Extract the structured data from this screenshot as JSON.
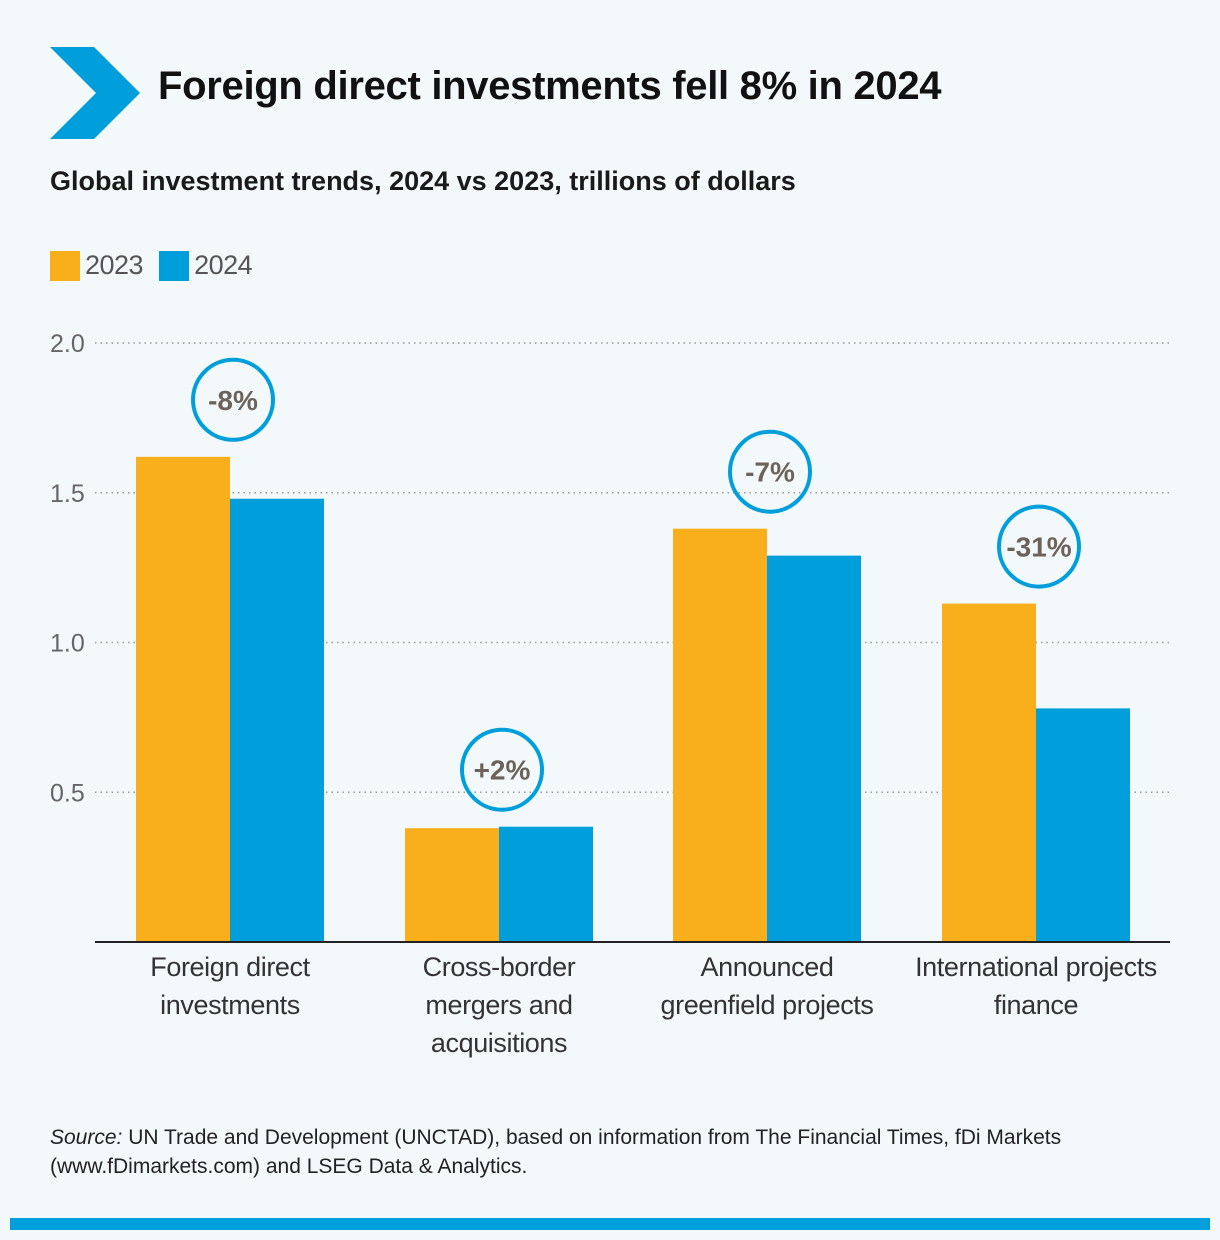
{
  "header": {
    "title": "Foreign direct investments fell 8% in 2024",
    "subtitle": "Global investment trends, 2024 vs 2023, trillions of dollars",
    "brand_color": "#009edb"
  },
  "legend": [
    {
      "label": "2023",
      "color": "#f9ae1b"
    },
    {
      "label": "2024",
      "color": "#009edb"
    }
  ],
  "chart_data": {
    "type": "bar",
    "title": "",
    "xlabel": "",
    "ylabel": "",
    "ylim": [
      0,
      2.0
    ],
    "yticks": [
      0.5,
      1.0,
      1.5,
      2.0
    ],
    "ytick_labels": [
      "0.5",
      "1.0",
      "1.5",
      "2.0"
    ],
    "grid": true,
    "legend_position": "top-left",
    "categories": [
      [
        "Foreign direct",
        "investments"
      ],
      [
        "Cross-border",
        "mergers and",
        "acquisitions"
      ],
      [
        "Announced",
        "greenfield projects"
      ],
      [
        "International projects",
        "finance"
      ]
    ],
    "series": [
      {
        "name": "2023",
        "color": "#f9ae1b",
        "values": [
          1.62,
          0.38,
          1.38,
          1.13
        ]
      },
      {
        "name": "2024",
        "color": "#009edb",
        "values": [
          1.48,
          0.385,
          1.29,
          0.78
        ]
      }
    ],
    "annotations": [
      "-8%",
      "+2%",
      "-7%",
      "-31%"
    ]
  },
  "source": {
    "prefix": "Source:",
    "text": " UN Trade and Development (UNCTAD), based on information from The Financial Times, fDi Markets (www.fDimarkets.com) and LSEG Data & Analytics."
  }
}
